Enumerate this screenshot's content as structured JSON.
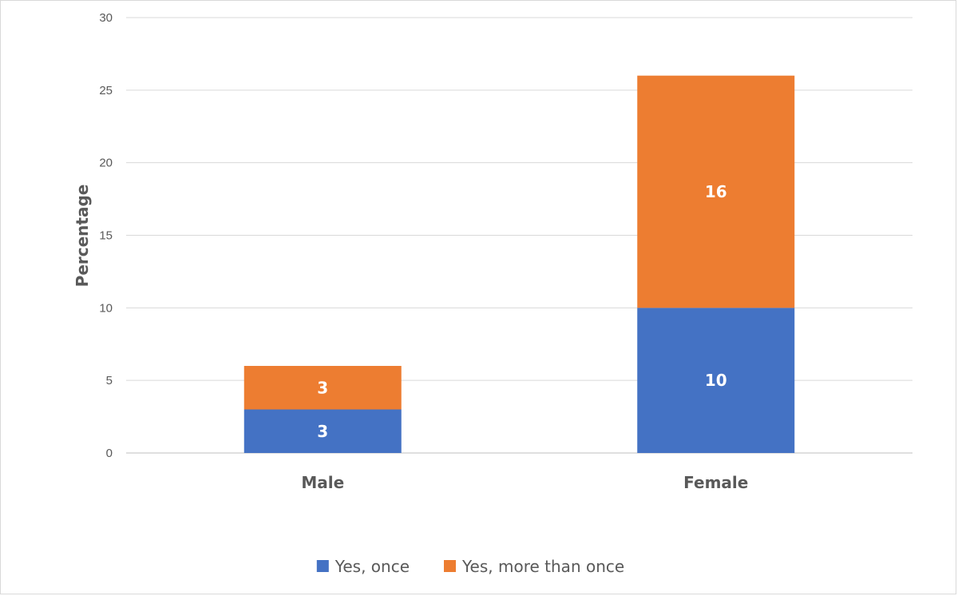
{
  "chart_data": {
    "type": "bar",
    "stacked": true,
    "categories": [
      "Male",
      "Female"
    ],
    "series": [
      {
        "name": "Yes, once",
        "values": [
          3,
          10
        ],
        "color": "#4472c4"
      },
      {
        "name": "Yes, more than once",
        "values": [
          3,
          16
        ],
        "color": "#ed7d31"
      }
    ],
    "title": "",
    "xlabel": "",
    "ylabel": "Percentage",
    "ylim": [
      0,
      30
    ],
    "yticks": [
      0,
      5,
      10,
      15,
      20,
      25,
      30
    ],
    "grid": true,
    "legend_position": "bottom",
    "data_labels": true
  }
}
